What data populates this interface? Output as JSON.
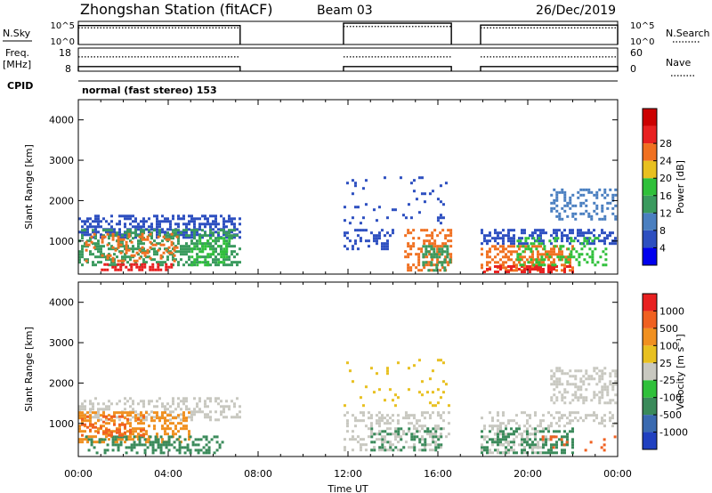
{
  "header": {
    "station": "Zhongshan Station (fitACF)",
    "beam": "Beam 03",
    "date": "26/Dec/2019"
  },
  "chart_data": [
    {
      "type": "line",
      "panel": "sky-search",
      "labels": {
        "left": "N.Sky",
        "right": "N.Search"
      },
      "left_ticks": [
        "10^5",
        "10^0"
      ],
      "right_ticks": [
        "10^5",
        "10^0"
      ],
      "series": [
        {
          "kind": "solid",
          "segments": [
            [
              0.0,
              7.2,
              0.82
            ],
            [
              11.8,
              16.6,
              0.92
            ],
            [
              17.9,
              24.0,
              0.84
            ]
          ]
        },
        {
          "kind": "dotted",
          "segments": [
            [
              0.0,
              7.2,
              0.72
            ],
            [
              11.8,
              16.6,
              0.78
            ],
            [
              17.9,
              24.0,
              0.72
            ]
          ]
        }
      ]
    },
    {
      "type": "line",
      "panel": "freq-nave",
      "labels": {
        "left": "Freq.",
        "left_unit": "[MHz]",
        "right": "Nave"
      },
      "left_ticks": [
        "18",
        "8"
      ],
      "right_ticks": [
        "60",
        "0"
      ],
      "series": [
        {
          "kind": "solid",
          "segments": [
            [
              0.0,
              7.2,
              0.2
            ],
            [
              11.8,
              16.6,
              0.2
            ],
            [
              17.9,
              24.0,
              0.2
            ]
          ]
        },
        {
          "kind": "dotted",
          "segments": [
            [
              0.0,
              7.2,
              0.62
            ],
            [
              11.8,
              16.6,
              0.62
            ],
            [
              17.9,
              24.0,
              0.62
            ]
          ]
        }
      ]
    },
    {
      "type": "heatmap",
      "panel": "power",
      "cpid_label": "CPID",
      "cpid_text": "normal (fast stereo) 153",
      "ylabel": "Slant Range [km]",
      "ylim": [
        180,
        4500
      ],
      "yticks": [
        "1000",
        "2000",
        "3000",
        "4000"
      ],
      "ytick_values": [
        1000,
        2000,
        3000,
        4000
      ],
      "colorbar": {
        "label": "Power [dB]",
        "ticks": [
          "4",
          "8",
          "12",
          "16",
          "20",
          "24",
          "28"
        ],
        "colors": [
          "#0000ee",
          "#2d4fc0",
          "#4a7fc0",
          "#3a9a5e",
          "#2fc03a",
          "#e8c020",
          "#f07020",
          "#e82020",
          "#cc0000"
        ]
      },
      "regions": [
        {
          "t": [
            0.0,
            7.2
          ],
          "r": [
            1050,
            1650
          ],
          "c": "#2d4fc0",
          "d": 0.5
        },
        {
          "t": [
            0.0,
            7.2
          ],
          "r": [
            350,
            1300
          ],
          "c": "#3a9a5e",
          "d": 0.45
        },
        {
          "t": [
            0.3,
            4.5
          ],
          "r": [
            450,
            1200
          ],
          "c": "#f07020",
          "d": 0.25
        },
        {
          "t": [
            1.0,
            4.2
          ],
          "r": [
            220,
            450
          ],
          "c": "#e82020",
          "d": 0.6
        },
        {
          "t": [
            5.0,
            6.8
          ],
          "r": [
            400,
            1100
          ],
          "c": "#2fc03a",
          "d": 0.35
        },
        {
          "t": [
            11.8,
            14.0
          ],
          "r": [
            800,
            1300
          ],
          "c": "#2d4fc0",
          "d": 0.35
        },
        {
          "t": [
            11.8,
            16.6
          ],
          "r": [
            1400,
            2600
          ],
          "c": "#2d4fc0",
          "d": 0.08
        },
        {
          "t": [
            14.5,
            16.6
          ],
          "r": [
            250,
            1300
          ],
          "c": "#f07020",
          "d": 0.35
        },
        {
          "t": [
            15.3,
            16.6
          ],
          "r": [
            250,
            900
          ],
          "c": "#3a9a5e",
          "d": 0.45
        },
        {
          "t": [
            17.9,
            24.0
          ],
          "r": [
            900,
            1300
          ],
          "c": "#2d4fc0",
          "d": 0.5
        },
        {
          "t": [
            17.9,
            22.0
          ],
          "r": [
            250,
            900
          ],
          "c": "#f07020",
          "d": 0.45
        },
        {
          "t": [
            17.9,
            22.0
          ],
          "r": [
            220,
            400
          ],
          "c": "#e82020",
          "d": 0.55
        },
        {
          "t": [
            21.0,
            24.0
          ],
          "r": [
            1500,
            2300
          ],
          "c": "#4a7fc0",
          "d": 0.3
        },
        {
          "t": [
            19.5,
            23.5
          ],
          "r": [
            400,
            1100
          ],
          "c": "#2fc03a",
          "d": 0.3
        }
      ]
    },
    {
      "type": "heatmap",
      "panel": "velocity",
      "ylabel": "Slant Range [km]",
      "ylim": [
        180,
        4500
      ],
      "yticks": [
        "1000",
        "2000",
        "3000",
        "4000"
      ],
      "ytick_values": [
        1000,
        2000,
        3000,
        4000
      ],
      "xlabel": "Time UT",
      "xticks": [
        "00:00",
        "04:00",
        "08:00",
        "12:00",
        "16:00",
        "20:00",
        "00:00"
      ],
      "xlim": [
        0,
        24
      ],
      "colorbar": {
        "label": "Velocity [m s⁻¹]",
        "ticks": [
          "1000",
          "500",
          "100",
          "25",
          "-25",
          "-100",
          "-500",
          "-1000"
        ],
        "colors": [
          "#2040c0",
          "#3a6ab0",
          "#3a8a5a",
          "#2fc03a",
          "#c8c8c0",
          "#e8c020",
          "#f09020",
          "#f06020",
          "#e82020"
        ]
      },
      "regions": [
        {
          "t": [
            0.0,
            7.2
          ],
          "r": [
            1050,
            1650
          ],
          "c": "#c8c8c0",
          "d": 0.35
        },
        {
          "t": [
            0.0,
            5.0
          ],
          "r": [
            500,
            1300
          ],
          "c": "#f09020",
          "d": 0.4
        },
        {
          "t": [
            0.3,
            6.5
          ],
          "r": [
            250,
            700
          ],
          "c": "#3a8a5a",
          "d": 0.35
        },
        {
          "t": [
            0.0,
            3.0
          ],
          "r": [
            700,
            1200
          ],
          "c": "#f06020",
          "d": 0.25
        },
        {
          "t": [
            11.8,
            16.6
          ],
          "r": [
            300,
            1300
          ],
          "c": "#c8c8c0",
          "d": 0.3
        },
        {
          "t": [
            13.0,
            16.2
          ],
          "r": [
            300,
            900
          ],
          "c": "#3a8a5a",
          "d": 0.25
        },
        {
          "t": [
            11.8,
            16.6
          ],
          "r": [
            1400,
            2600
          ],
          "c": "#e8c020",
          "d": 0.06
        },
        {
          "t": [
            17.9,
            24.0
          ],
          "r": [
            900,
            1300
          ],
          "c": "#c8c8c0",
          "d": 0.35
        },
        {
          "t": [
            17.9,
            22.0
          ],
          "r": [
            250,
            900
          ],
          "c": "#3a8a5a",
          "d": 0.4
        },
        {
          "t": [
            17.9,
            21.0
          ],
          "r": [
            250,
            900
          ],
          "c": "#c8c8c0",
          "d": 0.25
        },
        {
          "t": [
            21.0,
            24.0
          ],
          "r": [
            1500,
            2400
          ],
          "c": "#c8c8c0",
          "d": 0.4
        },
        {
          "t": [
            20.5,
            24.0
          ],
          "r": [
            300,
            700
          ],
          "c": "#f06020",
          "d": 0.12
        }
      ]
    }
  ]
}
